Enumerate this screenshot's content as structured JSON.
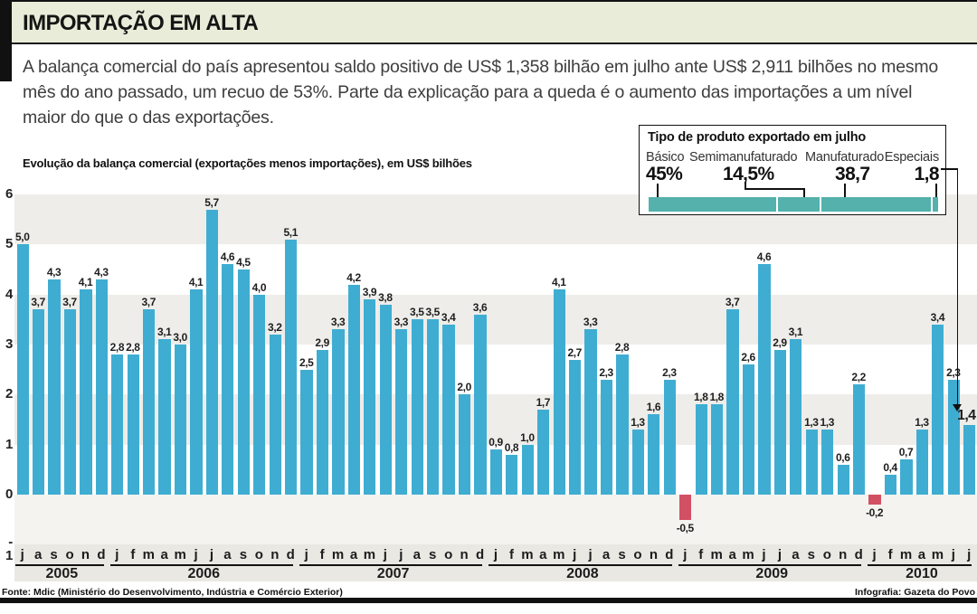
{
  "header": {
    "title": "IMPORTAÇÃO EM ALTA"
  },
  "intro": "A balança comercial do país apresentou saldo positivo de US$ 1,358 bilhão em julho ante US$ 2,911 bilhões no mesmo mês do ano passado, um recuo de 53%. Parte da explicação para a queda é o aumento das importações a um nível maior do que o das exportações.",
  "inset": {
    "title": "Tipo de produto exportado em julho",
    "bar_color": "#54b1ab",
    "categories": [
      {
        "label": "Básico",
        "value": "45%",
        "pct": 45
      },
      {
        "label": "Semimanufaturado",
        "value": "14,5%",
        "pct": 14.5
      },
      {
        "label": "Manufaturado",
        "value": "38,7",
        "pct": 38.7
      },
      {
        "label": "Especiais",
        "value": "1,8",
        "pct": 1.8
      }
    ]
  },
  "chart_data": {
    "type": "bar",
    "title": "Evolução da balança comercial (exportações menos importações), em US$ bilhões",
    "xlabel": "",
    "ylabel": "US$ bilhões",
    "ylim": [
      -1,
      6
    ],
    "yticks": [
      6,
      5,
      4,
      3,
      2,
      1,
      0,
      -1
    ],
    "grid": "horizontal-bands",
    "bar_color": "#3fadd2",
    "negative_color": "#d25063",
    "highlight_last_value": "1,4",
    "years": [
      {
        "year": "2005",
        "months": [
          "j",
          "a",
          "s",
          "o",
          "n",
          "d"
        ],
        "values": [
          5.0,
          3.7,
          4.3,
          3.7,
          4.1,
          4.3
        ]
      },
      {
        "year": "2006",
        "months": [
          "j",
          "f",
          "m",
          "a",
          "m",
          "j",
          "j",
          "a",
          "s",
          "o",
          "n",
          "d"
        ],
        "values": [
          2.8,
          2.8,
          3.7,
          3.1,
          3.0,
          4.1,
          5.7,
          4.6,
          4.5,
          4.0,
          3.2,
          5.1
        ]
      },
      {
        "year": "2007",
        "months": [
          "j",
          "f",
          "m",
          "a",
          "m",
          "j",
          "j",
          "a",
          "s",
          "o",
          "n",
          "d"
        ],
        "values": [
          2.5,
          2.9,
          3.3,
          4.2,
          3.9,
          3.8,
          3.3,
          3.5,
          3.5,
          3.4,
          2.0,
          3.6
        ]
      },
      {
        "year": "2008",
        "months": [
          "j",
          "f",
          "m",
          "a",
          "m",
          "j",
          "j",
          "a",
          "s",
          "o",
          "n",
          "d"
        ],
        "values": [
          0.9,
          0.8,
          1.0,
          1.7,
          4.1,
          2.7,
          3.3,
          2.3,
          2.8,
          1.3,
          1.6,
          2.3
        ]
      },
      {
        "year": "2009",
        "months": [
          "j",
          "f",
          "m",
          "a",
          "m",
          "j",
          "j",
          "a",
          "s",
          "o",
          "n",
          "d"
        ],
        "values": [
          -0.5,
          1.8,
          1.8,
          3.7,
          2.6,
          4.6,
          2.9,
          3.1,
          1.3,
          1.3,
          0.6,
          2.2
        ]
      },
      {
        "year": "2010",
        "months": [
          "j",
          "f",
          "m",
          "a",
          "m",
          "j",
          "j"
        ],
        "values": [
          -0.2,
          0.4,
          0.7,
          1.3,
          3.4,
          2.3,
          1.4
        ]
      }
    ]
  },
  "footer": {
    "source": "Fonte: Mdic (Ministério do Desenvolvimento, Indústria e Comércio Exterior)",
    "credit": "Infografia: Gazeta do Povo"
  }
}
